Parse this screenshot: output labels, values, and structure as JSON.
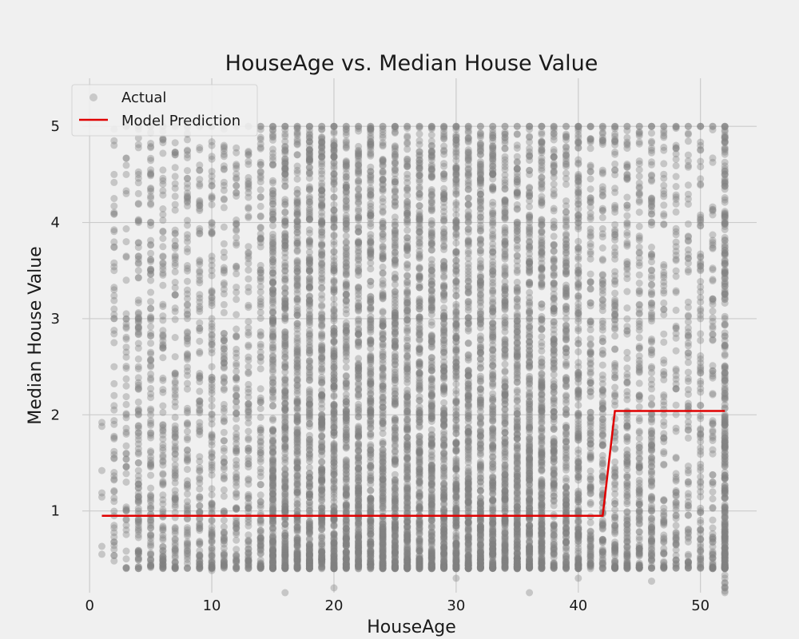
{
  "chart_data": {
    "type": "scatter",
    "title": "HouseAge vs. Median House Value",
    "xlabel": "HouseAge",
    "ylabel": "Median House Value",
    "xlim": [
      -0.6,
      54.6
    ],
    "ylim": [
      0.15,
      5.5
    ],
    "xticks": [
      0,
      10,
      20,
      30,
      40,
      50
    ],
    "yticks": [
      1,
      2,
      3,
      4,
      5
    ],
    "grid": true,
    "legend_position": "top-left",
    "series": [
      {
        "name": "Actual",
        "kind": "scatter",
        "color": "#808080",
        "description_points": "vertical strips of points at each integer HouseAge from 1 to 52, values ranging ~0.15 to 5.0 with a cap at 5.0",
        "columns": [
          {
            "x": 1,
            "values": [
              0.55,
              1.42,
              1.88,
              1.92
            ]
          },
          {
            "x": 2,
            "values": [
              0.48,
              0.6,
              0.95,
              1.2,
              1.4,
              1.55,
              1.75,
              1.9,
              2.05,
              2.2,
              2.5,
              2.75,
              3.0,
              3.1,
              3.3,
              3.5,
              4.25,
              4.5,
              4.85
            ]
          },
          {
            "x": 3,
            "values": [
              0.85,
              1.0,
              1.3,
              1.6,
              1.8,
              2.0,
              2.3,
              2.6,
              2.9,
              3.05,
              3.4,
              3.8,
              4.3,
              4.5,
              4.67,
              5.0
            ]
          },
          {
            "x": 4,
            "values": [
              0.42,
              0.75,
              1.0,
              1.5,
              2.0,
              2.5,
              3.0,
              3.5,
              4.0,
              4.3,
              4.5
            ]
          },
          {
            "x": 5,
            "values": [
              0.5,
              0.9,
              1.5,
              2.0,
              2.5,
              3.0,
              3.5,
              4.0,
              4.5,
              4.78,
              5.0
            ]
          },
          {
            "x": 10,
            "values": [
              0.38,
              0.8,
              1.5,
              2.0,
              2.5,
              3.0,
              3.5,
              4.0,
              4.38,
              4.8,
              5.0
            ]
          },
          {
            "x": 16,
            "values": [
              0.15,
              0.5,
              1.0,
              1.5,
              2.0,
              2.5,
              3.0,
              3.5,
              4.0,
              4.5,
              5.0
            ]
          },
          {
            "x": 20,
            "values": [
              0.2,
              0.5,
              1.0,
              1.5,
              2.0,
              2.5,
              3.0,
              3.5,
              4.0,
              4.5,
              5.0
            ]
          },
          {
            "x": 30,
            "values": [
              0.3,
              0.5,
              1.0,
              1.5,
              2.0,
              2.5,
              3.0,
              3.5,
              4.0,
              4.5,
              5.0
            ]
          },
          {
            "x": 36,
            "values": [
              0.15,
              0.5,
              1.0,
              1.5,
              2.0,
              2.5,
              3.0,
              3.5,
              4.0,
              4.5,
              5.0
            ]
          },
          {
            "x": 40,
            "values": [
              0.3,
              0.5,
              1.0,
              1.5,
              2.0,
              2.5,
              3.0,
              3.5,
              4.0,
              4.5,
              5.0
            ]
          },
          {
            "x": 46,
            "values": [
              0.27,
              0.5,
              1.0,
              1.5,
              2.0,
              2.5,
              3.0,
              3.5,
              4.0,
              4.25,
              4.75,
              5.0
            ]
          },
          {
            "x": 50,
            "values": [
              0.5,
              0.8,
              1.2,
              1.8,
              2.5,
              3.0,
              3.5,
              4.0,
              4.4,
              4.8,
              5.0
            ]
          },
          {
            "x": 52,
            "values": [
              0.15,
              0.2,
              0.3,
              0.5,
              1.0,
              1.5,
              2.0,
              2.5,
              3.0,
              3.5,
              4.0,
              4.5,
              5.0
            ]
          }
        ]
      },
      {
        "name": "Model Prediction",
        "kind": "line",
        "color": "#e00000",
        "x": [
          1,
          42,
          43,
          52
        ],
        "y": [
          0.95,
          0.95,
          2.04,
          2.04
        ]
      }
    ]
  }
}
